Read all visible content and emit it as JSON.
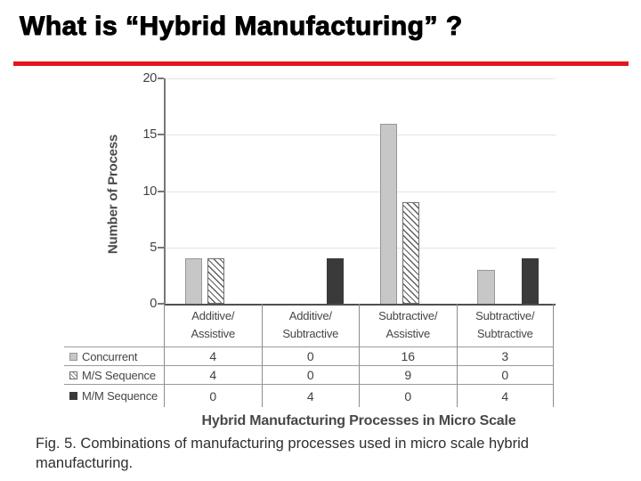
{
  "slide": {
    "title": "What is “Hybrid Manufacturing” ?",
    "accent_color": "#e1171d"
  },
  "figure": {
    "caption_line1": "Fig. 5. Combinations of manufacturing processes used in micro scale hybrid",
    "caption_line2": "manufacturing."
  },
  "chart_data": {
    "type": "bar",
    "title": "Hybrid Manufacturing Processes in Micro Scale",
    "ylabel": "Number of Process",
    "ylim": [
      0,
      20
    ],
    "yticks": [
      0,
      5,
      10,
      15,
      20
    ],
    "grid": true,
    "legend_position": "table-left",
    "categories": [
      {
        "line1": "Additive/",
        "line2": "Assistive"
      },
      {
        "line1": "Additive/",
        "line2": "Subtractive"
      },
      {
        "line1": "Subtractive/",
        "line2": "Assistive"
      },
      {
        "line1": "Subtractive/",
        "line2": "Subtractive"
      }
    ],
    "series": [
      {
        "name": "Concurrent",
        "values": [
          4,
          0,
          16,
          3
        ],
        "pattern": "solid",
        "color": "#c7c7c7",
        "border_color": "#979797"
      },
      {
        "name": "M/S Sequence",
        "values": [
          4,
          0,
          9,
          0
        ],
        "pattern": "diagonal-hatch",
        "color": "#5f5f5f",
        "border_color": "#6f6f6f"
      },
      {
        "name": "M/M Sequence",
        "values": [
          0,
          4,
          0,
          4
        ],
        "pattern": "solid",
        "color": "#3a3a3a",
        "border_color": "#3a3a3a"
      }
    ]
  }
}
